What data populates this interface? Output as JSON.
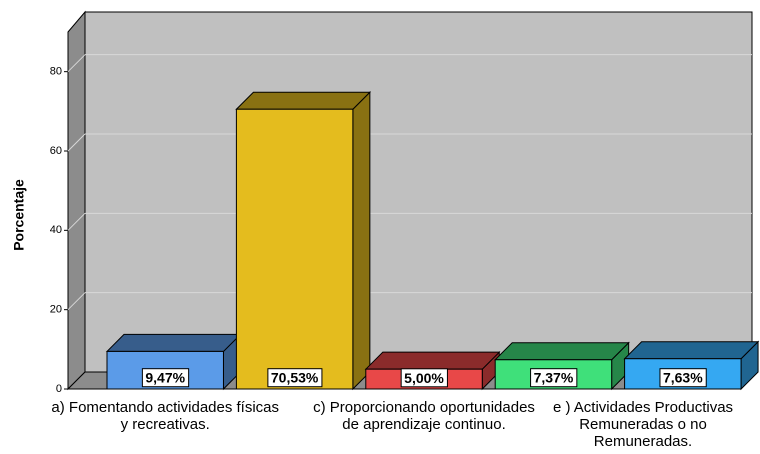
{
  "chart_data": {
    "type": "bar",
    "y_label": "Porcentaje",
    "categories": [
      "a) Fomentando actividades físicas y recreativas.",
      null,
      "c) Proporcionando oportunidades de aprendizaje continuo.",
      null,
      "e ) Actividades Productivas Remuneradas o no Remuneradas."
    ],
    "values": [
      9.47,
      70.53,
      5.0,
      7.37,
      7.63
    ],
    "value_labels": [
      "9,47%",
      "70,53%",
      "5,00%",
      "7,37%",
      "7,63%"
    ],
    "colors": [
      "#5b9be8",
      "#e4bc1e",
      "#e84848",
      "#3fe07a",
      "#35a8f2"
    ],
    "ylim": [
      0,
      90
    ],
    "yticks": [
      0,
      20,
      40,
      60,
      80
    ],
    "grid": true
  }
}
